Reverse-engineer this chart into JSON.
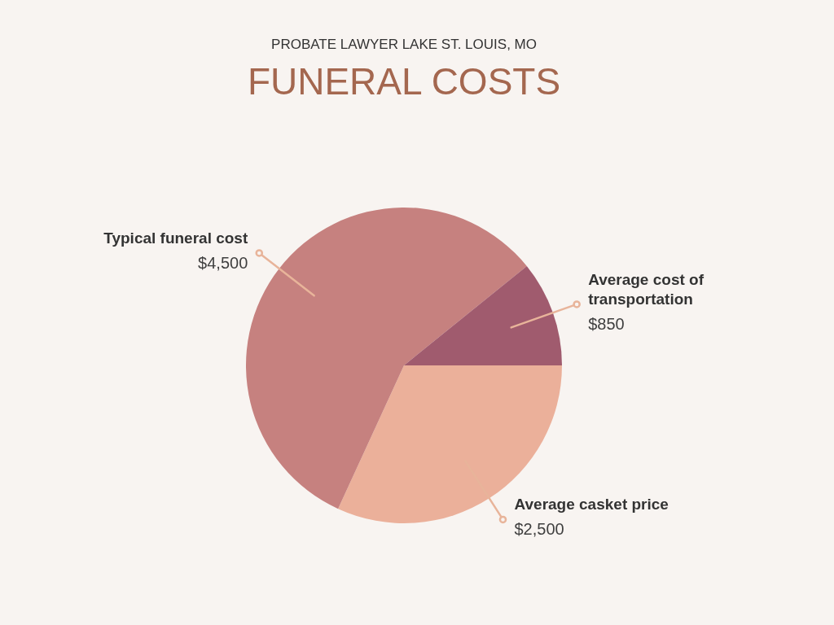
{
  "chart_data": {
    "type": "pie",
    "title": "FUNERAL COSTS",
    "subtitle": "PROBATE LAWYER LAKE ST. LOUIS, MO",
    "categories": [
      "Average casket price",
      "Typical funeral cost",
      "Average cost of transportation"
    ],
    "values": [
      2500,
      4500,
      850
    ],
    "colors": [
      "#ebb09a",
      "#c6817f",
      "#a05b6e"
    ],
    "value_labels": [
      "$2,500",
      "$4,500",
      "$850"
    ]
  }
}
